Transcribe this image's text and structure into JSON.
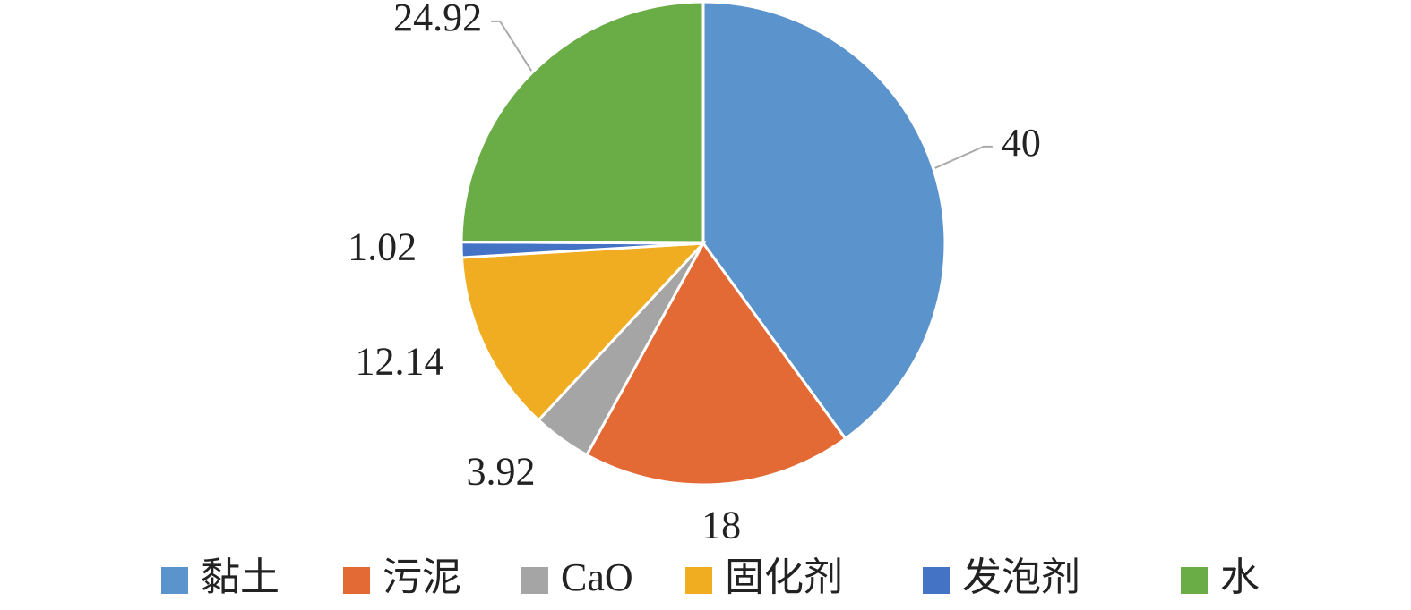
{
  "chart_data": {
    "type": "pie",
    "categories": [
      "黏土",
      "污泥",
      "CaO",
      "固化剂",
      "发泡剂",
      "水"
    ],
    "values": [
      40,
      18,
      3.92,
      12.14,
      1.02,
      24.92
    ],
    "colors": [
      "#5b93cc",
      "#e46a35",
      "#a5a5a5",
      "#f0ad22",
      "#4472c4",
      "#6aad47"
    ],
    "legend": "bottom"
  }
}
